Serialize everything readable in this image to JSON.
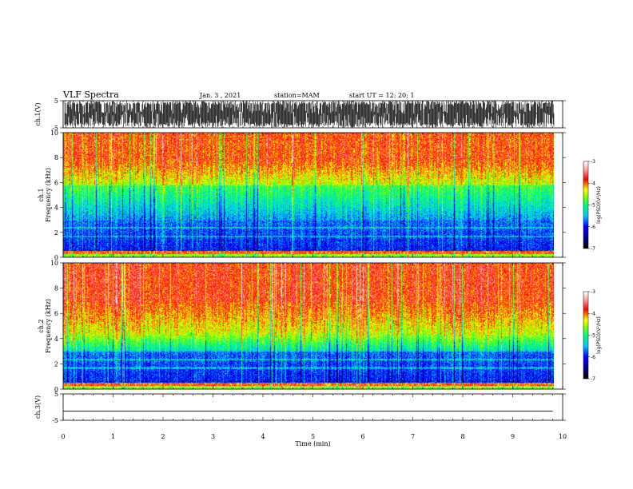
{
  "header": {
    "title": "VLF Spectra",
    "date": "Jan. 3 , 2021",
    "station": "station=MAM",
    "start_ut": "start UT = 12: 20: 1"
  },
  "colors": {
    "colormap": [
      "#ffffff",
      "#ff9a9a",
      "#ff0000",
      "#ffff00",
      "#00ff00",
      "#00ffff",
      "#0000ff",
      "#000000"
    ]
  },
  "chart_data": [
    {
      "type": "line",
      "panel": "ch1-waveform",
      "ylabel": "ch.1(V)",
      "ylim": [
        -5,
        5
      ],
      "yticks": [
        "5",
        "-5"
      ],
      "description_series": "dense impulsive waveform between -5 and 5 V",
      "x_unit": "min",
      "xlim": [
        0,
        10
      ]
    },
    {
      "type": "heatmap",
      "panel": "ch1-spectrogram",
      "ylabel": "ch.1",
      "ylabel2": "Frequency (kHz)",
      "ylim": [
        0,
        10
      ],
      "yticks": [
        "0",
        "2",
        "4",
        "6",
        "8",
        "10"
      ],
      "xlim": [
        0,
        10
      ],
      "colorbar": {
        "label": "log(PSD)(V²/Hz)",
        "range": [
          -7,
          -3
        ],
        "ticks": [
          "-3",
          "-4",
          "-5",
          "-6",
          "-7"
        ]
      }
    },
    {
      "type": "heatmap",
      "panel": "ch2-spectrogram",
      "ylabel": "ch.2",
      "ylabel2": "Frequency (kHz)",
      "ylim": [
        0,
        10
      ],
      "yticks": [
        "0",
        "2",
        "4",
        "6",
        "8",
        "10"
      ],
      "xlim": [
        0,
        10
      ],
      "colorbar": {
        "label": "log(PSD)(V²/Hz)",
        "range": [
          -7,
          -3
        ],
        "ticks": [
          "-3",
          "-4",
          "-5",
          "-6",
          "-7"
        ]
      }
    },
    {
      "type": "line",
      "panel": "ch3-waveform",
      "ylabel": "ch.3(V)",
      "ylim": [
        -5,
        5
      ],
      "yticks": [
        "5",
        "-5"
      ],
      "series": [
        {
          "x": [
            0,
            9.8
          ],
          "y": [
            -1.5,
            -1.5
          ]
        }
      ],
      "xlim": [
        0,
        10
      ]
    }
  ],
  "xaxis": {
    "label": "Time (min)",
    "ticks": [
      "0",
      "1",
      "2",
      "3",
      "4",
      "5",
      "6",
      "7",
      "8",
      "9",
      "10"
    ]
  }
}
